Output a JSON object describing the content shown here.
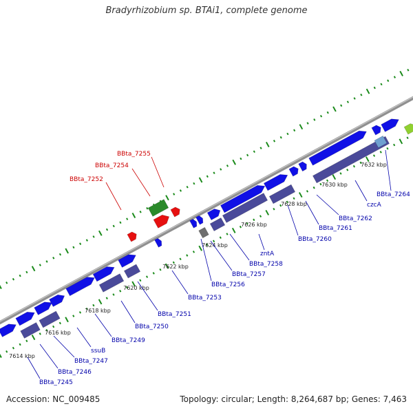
{
  "title": "Bradyrhizobium sp. BTAi1, complete genome",
  "footer": {
    "accession": "Accession: NC_009485",
    "summary": "Topology: circular; Length: 8,264,687 bp; Genes: 7,463"
  },
  "colors": {
    "cds": "#1010e6",
    "cds_dark": "#4a4a9a",
    "highlight_red": "#e61010",
    "green": "#2a8a2a",
    "grey_gene": "#6e6e6e",
    "light_blue": "#6fa0d0",
    "lime": "#90d030",
    "backbone": "#909090",
    "tick_green": "#1a8a1a",
    "label_red": "#cc0000",
    "label_blue": "#0000aa"
  },
  "scale_labels": [
    "7614 kbp",
    "7616 kbp",
    "7618 kbp",
    "7620 kbp",
    "7622 kbp",
    "7624 kbp",
    "7626 kbp",
    "7628 kbp",
    "7630 kbp",
    "7632 kbp"
  ],
  "gene_labels": [
    {
      "text": "BBta_7255",
      "color": "red"
    },
    {
      "text": "BBta_7254",
      "color": "red"
    },
    {
      "text": "BBta_7252",
      "color": "red"
    },
    {
      "text": "BBta_7245",
      "color": "blue"
    },
    {
      "text": "BBta_7246",
      "color": "blue"
    },
    {
      "text": "BBta_7247",
      "color": "blue"
    },
    {
      "text": "ssuB",
      "color": "blue"
    },
    {
      "text": "BBta_7249",
      "color": "blue"
    },
    {
      "text": "BBta_7250",
      "color": "blue"
    },
    {
      "text": "BBta_7251",
      "color": "blue"
    },
    {
      "text": "BBta_7253",
      "color": "blue"
    },
    {
      "text": "BBta_7256",
      "color": "blue"
    },
    {
      "text": "BBta_7257",
      "color": "blue"
    },
    {
      "text": "BBta_7258",
      "color": "blue"
    },
    {
      "text": "zntA",
      "color": "blue"
    },
    {
      "text": "BBta_7260",
      "color": "blue"
    },
    {
      "text": "BBta_7261",
      "color": "blue"
    },
    {
      "text": "BBta_7262",
      "color": "blue"
    },
    {
      "text": "czcA",
      "color": "blue"
    },
    {
      "text": "BBta_7264",
      "color": "blue"
    }
  ]
}
